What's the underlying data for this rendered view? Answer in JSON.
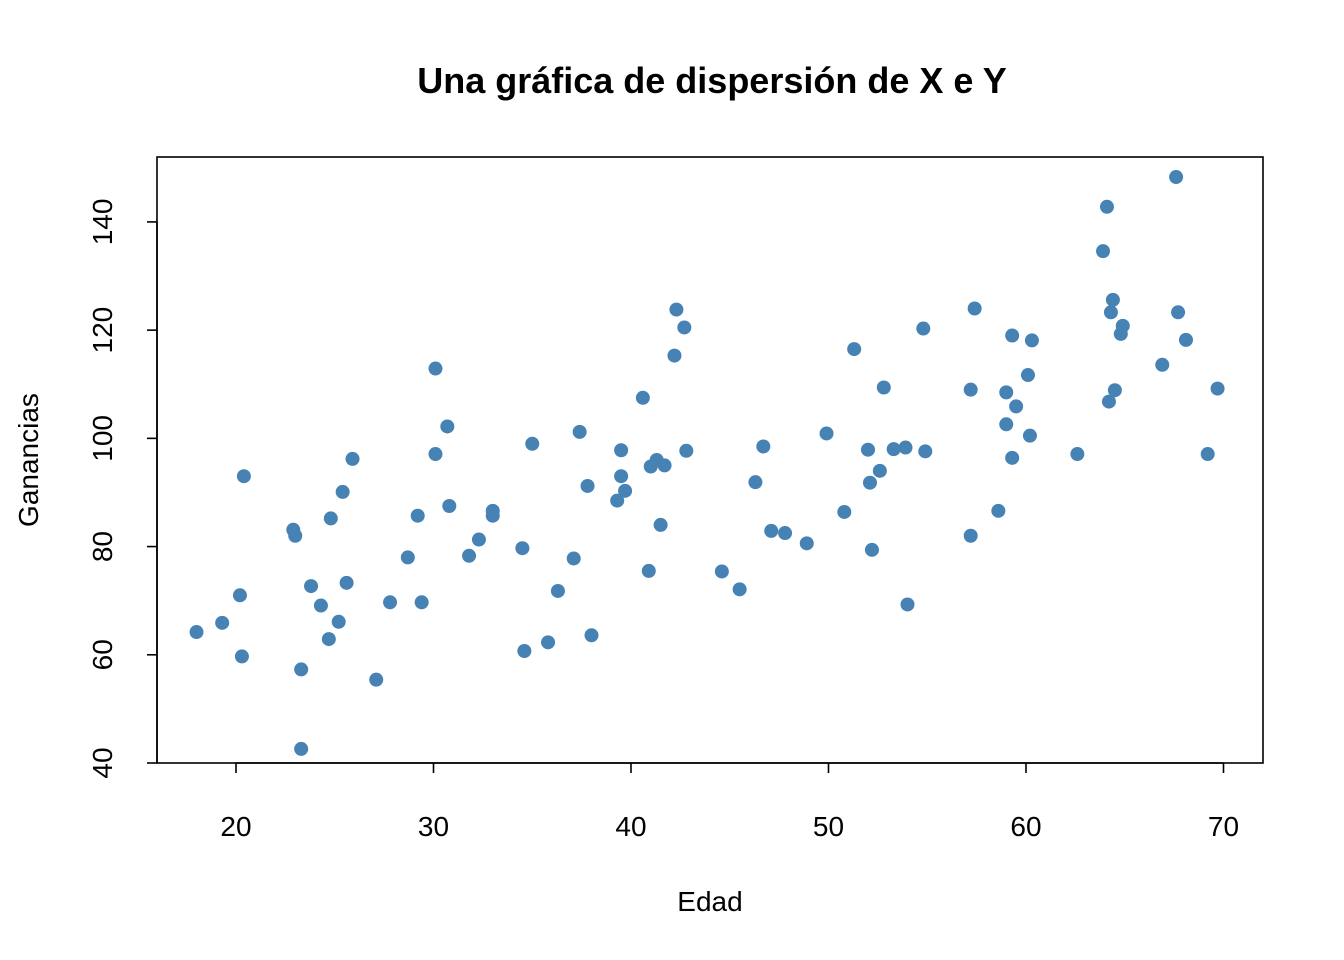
{
  "chart_data": {
    "type": "scatter",
    "title": "Una gráfica de dispersión de X e Y",
    "xlabel": "Edad",
    "ylabel": "Ganancias",
    "xlim": [
      16,
      72
    ],
    "ylim": [
      40,
      152
    ],
    "xticks": [
      20,
      30,
      40,
      50,
      60,
      70
    ],
    "yticks": [
      40,
      60,
      80,
      100,
      120,
      140
    ],
    "grid": false,
    "point_color": "#4682B4",
    "series": [
      {
        "points": [
          [
            18.0,
            64.2
          ],
          [
            19.3,
            65.9
          ],
          [
            20.2,
            71.0
          ],
          [
            20.3,
            59.7
          ],
          [
            20.4,
            93.0
          ],
          [
            22.9,
            83.1
          ],
          [
            23.0,
            82.0
          ],
          [
            23.3,
            57.3
          ],
          [
            23.3,
            42.6
          ],
          [
            23.8,
            72.7
          ],
          [
            24.3,
            69.1
          ],
          [
            24.7,
            62.9
          ],
          [
            24.8,
            85.2
          ],
          [
            25.2,
            66.1
          ],
          [
            25.4,
            90.1
          ],
          [
            25.6,
            73.3
          ],
          [
            25.9,
            96.2
          ],
          [
            27.1,
            55.4
          ],
          [
            27.8,
            69.7
          ],
          [
            28.7,
            78.0
          ],
          [
            29.2,
            85.7
          ],
          [
            29.4,
            69.7
          ],
          [
            30.1,
            97.1
          ],
          [
            30.1,
            112.9
          ],
          [
            30.7,
            102.2
          ],
          [
            30.8,
            87.5
          ],
          [
            31.8,
            78.3
          ],
          [
            32.3,
            81.3
          ],
          [
            33.0,
            86.6
          ],
          [
            33.0,
            85.7
          ],
          [
            34.5,
            79.7
          ],
          [
            34.6,
            60.7
          ],
          [
            35.0,
            99.0
          ],
          [
            35.8,
            62.3
          ],
          [
            36.3,
            71.8
          ],
          [
            37.1,
            77.8
          ],
          [
            37.4,
            101.2
          ],
          [
            37.8,
            91.2
          ],
          [
            38.0,
            63.6
          ],
          [
            39.3,
            88.5
          ],
          [
            39.5,
            97.8
          ],
          [
            39.5,
            93.0
          ],
          [
            39.7,
            90.3
          ],
          [
            40.6,
            107.5
          ],
          [
            40.9,
            75.5
          ],
          [
            41.0,
            94.8
          ],
          [
            41.3,
            96.0
          ],
          [
            41.5,
            84.0
          ],
          [
            41.7,
            95.0
          ],
          [
            42.2,
            115.3
          ],
          [
            42.3,
            123.8
          ],
          [
            42.7,
            120.5
          ],
          [
            42.8,
            97.7
          ],
          [
            44.6,
            75.4
          ],
          [
            45.5,
            72.1
          ],
          [
            46.3,
            91.9
          ],
          [
            46.7,
            98.5
          ],
          [
            47.1,
            82.9
          ],
          [
            47.8,
            82.5
          ],
          [
            48.9,
            80.6
          ],
          [
            49.9,
            100.9
          ],
          [
            50.8,
            86.4
          ],
          [
            51.3,
            116.5
          ],
          [
            52.0,
            97.9
          ],
          [
            52.1,
            91.8
          ],
          [
            52.2,
            79.4
          ],
          [
            52.6,
            94.0
          ],
          [
            52.8,
            109.4
          ],
          [
            53.3,
            98.0
          ],
          [
            53.9,
            98.3
          ],
          [
            54.0,
            69.3
          ],
          [
            54.8,
            120.3
          ],
          [
            54.9,
            97.6
          ],
          [
            57.2,
            109.0
          ],
          [
            57.2,
            82.0
          ],
          [
            57.4,
            124.0
          ],
          [
            58.6,
            86.6
          ],
          [
            59.0,
            108.5
          ],
          [
            59.0,
            102.6
          ],
          [
            59.3,
            96.4
          ],
          [
            59.3,
            119.0
          ],
          [
            59.5,
            105.9
          ],
          [
            60.1,
            111.7
          ],
          [
            60.2,
            100.5
          ],
          [
            60.3,
            118.1
          ],
          [
            62.6,
            97.1
          ],
          [
            63.9,
            134.6
          ],
          [
            64.1,
            142.8
          ],
          [
            64.2,
            106.8
          ],
          [
            64.3,
            123.3
          ],
          [
            64.4,
            125.6
          ],
          [
            64.5,
            108.9
          ],
          [
            64.8,
            119.3
          ],
          [
            64.9,
            120.8
          ],
          [
            66.9,
            113.6
          ],
          [
            67.6,
            148.3
          ],
          [
            67.7,
            123.3
          ],
          [
            68.1,
            118.2
          ],
          [
            69.2,
            97.1
          ],
          [
            69.7,
            109.2
          ]
        ]
      }
    ]
  }
}
